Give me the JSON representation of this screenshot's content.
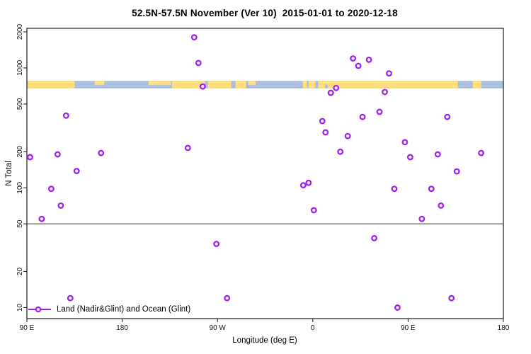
{
  "chart_data": {
    "type": "scatter",
    "title": "52.5N-57.5N November (Ver 10)  2015-01-01 to 2020-12-18",
    "xlabel": "Longitude (deg E)",
    "ylabel": "N Total",
    "xlim": [
      90,
      540
    ],
    "ylim": [
      8.1,
      2140
    ],
    "log_y": true,
    "grid": false,
    "x_ticks": [
      {
        "v": 90,
        "label": "90 E"
      },
      {
        "v": 180,
        "label": "180"
      },
      {
        "v": 270,
        "label": "90 W"
      },
      {
        "v": 360,
        "label": "0"
      },
      {
        "v": 450,
        "label": "90 E"
      },
      {
        "v": 540,
        "label": "180"
      }
    ],
    "y_ticks": [
      {
        "v": 2000,
        "label": "2000"
      },
      {
        "v": 1000,
        "label": "1000"
      },
      {
        "v": 500,
        "label": "500"
      },
      {
        "v": 200,
        "label": "200"
      },
      {
        "v": 100,
        "label": "100"
      },
      {
        "v": 50,
        "label": "50"
      },
      {
        "v": 20,
        "label": "20"
      },
      {
        "v": 10,
        "label": "10"
      }
    ],
    "reference_line_y": 50,
    "axis_color": "#1a1a1a",
    "map_strip": {
      "top_value": 780,
      "bottom_value": 675,
      "ocean_color": "#A9BFDD",
      "land_color": "#FFDE7D",
      "land_segments": [
        {
          "from": 90,
          "to": 135,
          "part": "full"
        },
        {
          "from": 154,
          "to": 163,
          "part": "top"
        },
        {
          "from": 205,
          "to": 226,
          "part": "top"
        },
        {
          "from": 227,
          "to": 258,
          "part": "full"
        },
        {
          "from": 261,
          "to": 283,
          "part": "full"
        },
        {
          "from": 287,
          "to": 297,
          "part": "full"
        },
        {
          "from": 299,
          "to": 306,
          "part": "top"
        },
        {
          "from": 350.5,
          "to": 354.5,
          "part": "full"
        },
        {
          "from": 356,
          "to": 362.5,
          "part": "full"
        },
        {
          "from": 365,
          "to": 497,
          "part": "full"
        },
        {
          "from": 511,
          "to": 519,
          "part": "full"
        }
      ],
      "water_segments": [
        {
          "from": 371.5,
          "to": 374,
          "part": "bottom"
        }
      ]
    },
    "marker": {
      "shape": "open-circle",
      "color": "#A122EE"
    },
    "legend": {
      "label": "Land (Nadir&Glint) and Ocean (Glint)",
      "position": "bottom-left"
    },
    "points": [
      {
        "x": 93,
        "n": 180
      },
      {
        "x": 104,
        "n": 55
      },
      {
        "x": 113,
        "n": 98
      },
      {
        "x": 119,
        "n": 190
      },
      {
        "x": 122,
        "n": 71
      },
      {
        "x": 127,
        "n": 400
      },
      {
        "x": 131,
        "n": 12
      },
      {
        "x": 137,
        "n": 138
      },
      {
        "x": 160,
        "n": 195
      },
      {
        "x": 242,
        "n": 215
      },
      {
        "x": 248,
        "n": 1800
      },
      {
        "x": 252,
        "n": 1100
      },
      {
        "x": 256,
        "n": 700
      },
      {
        "x": 269,
        "n": 34
      },
      {
        "x": 279,
        "n": 12
      },
      {
        "x": 351,
        "n": 105
      },
      {
        "x": 356,
        "n": 110
      },
      {
        "x": 361,
        "n": 65
      },
      {
        "x": 369,
        "n": 360
      },
      {
        "x": 372,
        "n": 290
      },
      {
        "x": 377,
        "n": 620
      },
      {
        "x": 382,
        "n": 680
      },
      {
        "x": 386,
        "n": 200
      },
      {
        "x": 393,
        "n": 270
      },
      {
        "x": 398,
        "n": 1200
      },
      {
        "x": 403,
        "n": 1040
      },
      {
        "x": 407,
        "n": 390
      },
      {
        "x": 413,
        "n": 1170
      },
      {
        "x": 418,
        "n": 38
      },
      {
        "x": 423,
        "n": 430
      },
      {
        "x": 428,
        "n": 630
      },
      {
        "x": 432,
        "n": 900
      },
      {
        "x": 437,
        "n": 98
      },
      {
        "x": 440,
        "n": 10
      },
      {
        "x": 447,
        "n": 240
      },
      {
        "x": 452,
        "n": 180
      },
      {
        "x": 463,
        "n": 55
      },
      {
        "x": 472,
        "n": 98
      },
      {
        "x": 478,
        "n": 190
      },
      {
        "x": 481,
        "n": 71
      },
      {
        "x": 487,
        "n": 390
      },
      {
        "x": 491,
        "n": 12
      },
      {
        "x": 496,
        "n": 137
      },
      {
        "x": 519,
        "n": 195
      }
    ]
  }
}
